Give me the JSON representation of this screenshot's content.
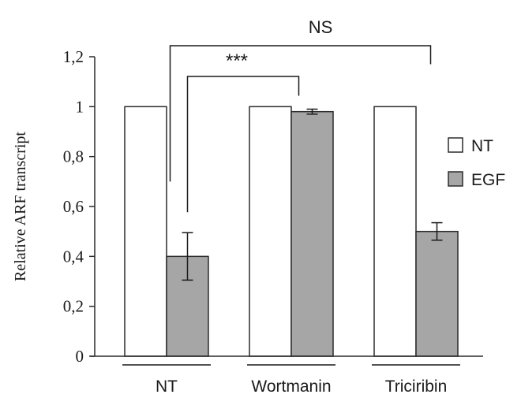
{
  "chart_data": {
    "type": "bar",
    "title": "",
    "xlabel": "",
    "ylabel": "Relative ARF transcript",
    "ylim": [
      0,
      1.2
    ],
    "y_ticks": [
      "0",
      "0,2",
      "0,4",
      "0,6",
      "0,8",
      "1",
      "1,2"
    ],
    "y_tick_values": [
      0,
      0.2,
      0.4,
      0.6,
      0.8,
      1.0,
      1.2
    ],
    "categories": [
      "NT",
      "Wortmanin",
      "Triciribin"
    ],
    "series": [
      {
        "name": "NT",
        "values": [
          1.0,
          1.0,
          1.0
        ],
        "errors": [
          0,
          0,
          0
        ],
        "color": "#ffffff"
      },
      {
        "name": "EGF",
        "values": [
          0.4,
          0.98,
          0.5
        ],
        "errors": [
          0.095,
          0.01,
          0.035
        ],
        "color": "#a6a6a6"
      }
    ],
    "legend": {
      "placement": "right",
      "entries": [
        "NT",
        "EGF"
      ]
    },
    "grid": false,
    "annotations": [
      {
        "label": "***",
        "from_category": "NT",
        "from_series": "EGF",
        "to_category": "Wortmanin",
        "to_series": "EGF"
      },
      {
        "label": "NS",
        "from_category": "NT",
        "from_series": "NT",
        "to_category": "Triciribin",
        "to_series": "EGF"
      }
    ]
  }
}
